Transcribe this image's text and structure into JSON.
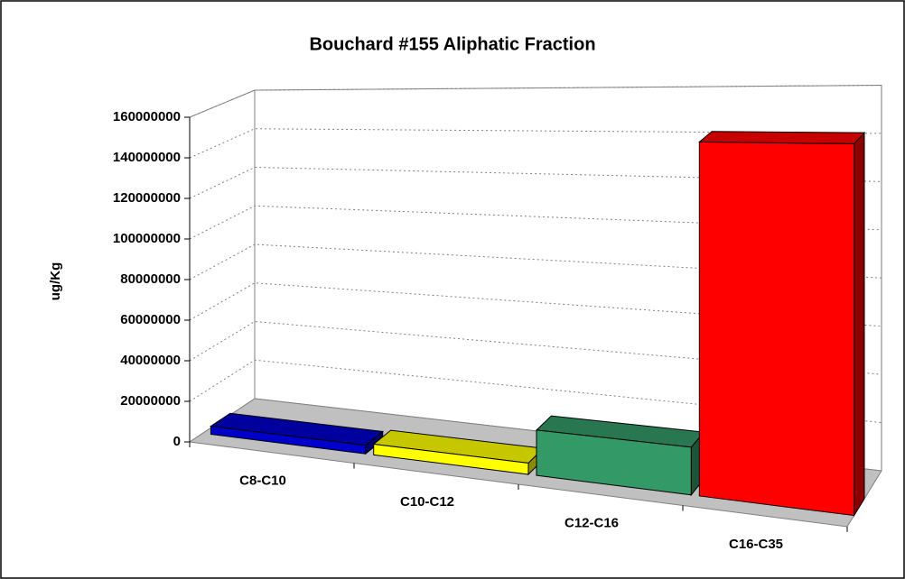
{
  "chart_data": {
    "type": "bar3d",
    "title": "Bouchard #155 Aliphatic Fraction",
    "ylabel": "ug/Kg",
    "categories": [
      "C8-C10",
      "C10-C12",
      "C12-C16",
      "C16-C35"
    ],
    "values": [
      4000000,
      5000000,
      20000000,
      148000000
    ],
    "colors": [
      "#0000cc",
      "#ffff00",
      "#339966",
      "#ff0000"
    ],
    "ylim": [
      0,
      160000000
    ],
    "yticks": [
      0,
      20000000,
      40000000,
      60000000,
      80000000,
      100000000,
      120000000,
      140000000,
      160000000
    ],
    "grid": true
  }
}
